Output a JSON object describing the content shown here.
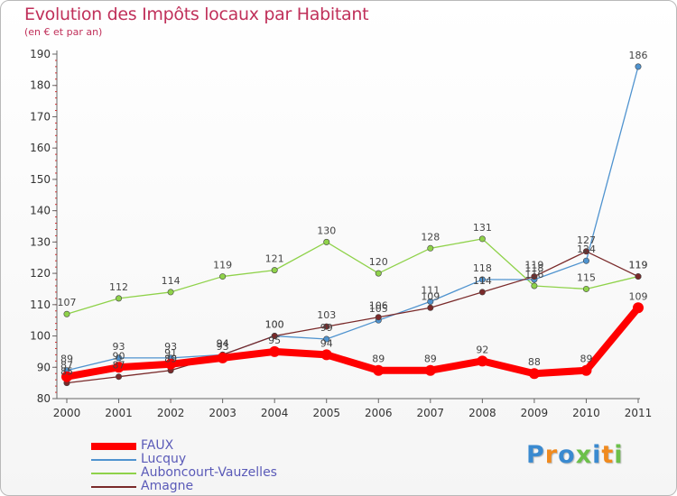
{
  "chart_data": {
    "type": "line",
    "title": "Evolution des Impôts locaux par Habitant",
    "subtitle": "(en € et par an)",
    "x": [
      "2000",
      "2001",
      "2002",
      "2003",
      "2004",
      "2005",
      "2006",
      "2007",
      "2008",
      "2009",
      "2010",
      "2011"
    ],
    "ylim": [
      80,
      190
    ],
    "yticks": [
      80,
      90,
      100,
      110,
      120,
      130,
      140,
      150,
      160,
      170,
      180,
      190
    ],
    "grid": false,
    "legend_position": "bottom-left",
    "series": [
      {
        "name": "FAUX",
        "color": "#ff0000",
        "values": [
          87,
          90,
          91,
          93,
          95,
          94,
          89,
          89,
          92,
          88,
          89,
          109
        ],
        "labels": [
          "87",
          "90",
          "91",
          "93",
          "95",
          "94",
          "89",
          "89",
          "92",
          "88",
          "89",
          "109"
        ]
      },
      {
        "name": "Lucquy",
        "color": "#4f93cf",
        "values": [
          89,
          93,
          93,
          94,
          100,
          99,
          105,
          111,
          118,
          118,
          124,
          186
        ],
        "labels": [
          "89",
          "93",
          "93",
          "94",
          "100",
          "99",
          "105",
          "111",
          "118",
          "118",
          "124",
          "186"
        ]
      },
      {
        "name": "Auboncourt-Vauzelles",
        "color": "#8fd24a",
        "values": [
          107,
          112,
          114,
          119,
          121,
          130,
          120,
          128,
          131,
          116,
          115,
          119
        ],
        "labels": [
          "107",
          "112",
          "114",
          "119",
          "121",
          "130",
          "120",
          "128",
          "131",
          "116",
          "115",
          "119"
        ]
      },
      {
        "name": "Amagne",
        "color": "#7a2a2a",
        "values": [
          85,
          87,
          89,
          94,
          100,
          103,
          106,
          109,
          114,
          119,
          127,
          119
        ],
        "labels": [
          "85",
          "87",
          "89",
          "94",
          "100",
          "103",
          "106",
          "109",
          "114",
          "119",
          "127",
          "119"
        ]
      }
    ]
  },
  "brand": {
    "letters": [
      {
        "ch": "P",
        "color": "#3a8ad0"
      },
      {
        "ch": "r",
        "color": "#f08a1e"
      },
      {
        "ch": "o",
        "color": "#3a8ad0"
      },
      {
        "ch": "x",
        "color": "#6cc04a"
      },
      {
        "ch": "i",
        "color": "#3a8ad0"
      },
      {
        "ch": "t",
        "color": "#f08a1e"
      },
      {
        "ch": "i",
        "color": "#6cc04a"
      }
    ]
  }
}
